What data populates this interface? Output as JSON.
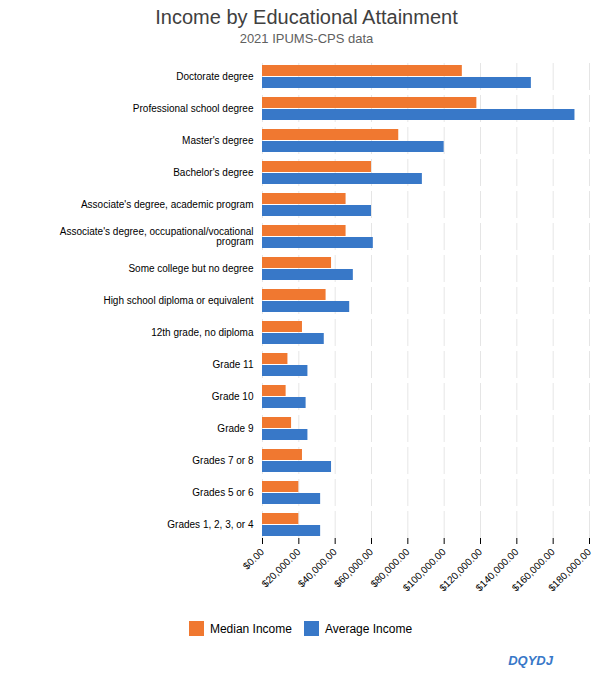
{
  "chart_data": {
    "type": "bar",
    "orientation": "horizontal",
    "title": "Income by Educational Attainment",
    "subtitle": "2021 IPUMS-CPS data",
    "categories": [
      "Doctorate degree",
      "Professional school degree",
      "Master's degree",
      "Bachelor's degree",
      "Associate's degree, academic program",
      "Associate's degree, occupational/vocational\nprogram",
      "Some college but no degree",
      "High school diploma or equivalent",
      "12th grade, no diploma",
      "Grade 11",
      "Grade 10",
      "Grade 9",
      "Grades 7 or 8",
      "Grades 5 or 6",
      "Grades 1, 2, 3, or 4"
    ],
    "series": [
      {
        "name": "Median Income",
        "color": "#F07830",
        "values": [
          110000,
          118000,
          75000,
          60000,
          46000,
          46000,
          38000,
          35000,
          22000,
          14000,
          13000,
          16000,
          22000,
          20000,
          20000
        ]
      },
      {
        "name": "Average Income",
        "color": "#3878C8",
        "values": [
          148000,
          172000,
          100000,
          88000,
          60000,
          61000,
          50000,
          48000,
          34000,
          25000,
          24000,
          25000,
          38000,
          32000,
          32000
        ]
      }
    ],
    "xlim": [
      0,
      180000
    ],
    "xticks": [
      {
        "value": 0,
        "label": "$0.00"
      },
      {
        "value": 20000,
        "label": "$20,000.00"
      },
      {
        "value": 40000,
        "label": "$40,000.00"
      },
      {
        "value": 60000,
        "label": "$60,000.00"
      },
      {
        "value": 80000,
        "label": "$80,000.00"
      },
      {
        "value": 100000,
        "label": "$100,000.00"
      },
      {
        "value": 120000,
        "label": "$120,000.00"
      },
      {
        "value": 140000,
        "label": "$140,000.00"
      },
      {
        "value": 160000,
        "label": "$160,000.00"
      },
      {
        "value": 180000,
        "label": "$180,000.00"
      }
    ],
    "grid": true,
    "legend": "bottom",
    "annotations": [
      "DQYDJ"
    ]
  }
}
